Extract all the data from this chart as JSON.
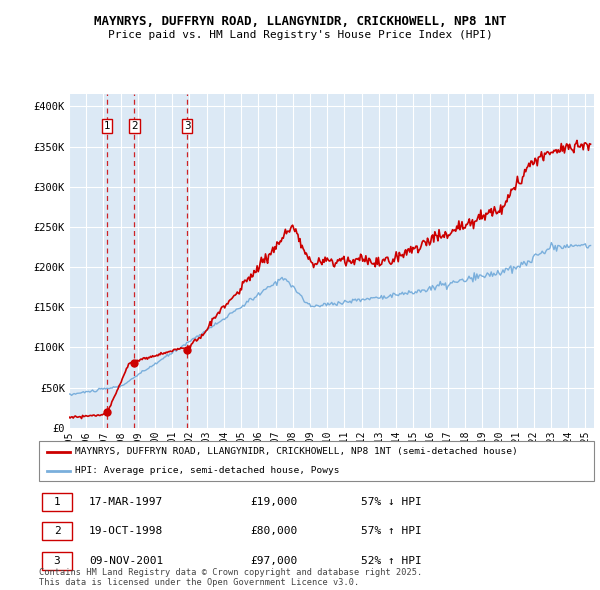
{
  "title": "MAYNRYS, DUFFRYN ROAD, LLANGYNIDR, CRICKHOWELL, NP8 1NT",
  "subtitle": "Price paid vs. HM Land Registry's House Price Index (HPI)",
  "legend_property": "MAYNRYS, DUFFRYN ROAD, LLANGYNIDR, CRICKHOWELL, NP8 1NT (semi-detached house)",
  "legend_hpi": "HPI: Average price, semi-detached house, Powys",
  "footer": "Contains HM Land Registry data © Crown copyright and database right 2025.\nThis data is licensed under the Open Government Licence v3.0.",
  "sale_events": [
    {
      "num": 1,
      "date": "17-MAR-1997",
      "price": 19000,
      "hpi_rel": "57% ↓ HPI",
      "year": 1997.21
    },
    {
      "num": 2,
      "date": "19-OCT-1998",
      "price": 80000,
      "hpi_rel": "57% ↑ HPI",
      "year": 1998.8
    },
    {
      "num": 3,
      "date": "09-NOV-2001",
      "price": 97000,
      "hpi_rel": "52% ↑ HPI",
      "year": 2001.86
    }
  ],
  "property_color": "#cc0000",
  "hpi_color": "#7aafdc",
  "vline_color": "#cc0000",
  "plot_bg": "#dce9f5",
  "ylim": [
    0,
    415000
  ],
  "xlim": [
    1995.0,
    2025.5
  ],
  "yticks": [
    0,
    50000,
    100000,
    150000,
    200000,
    250000,
    300000,
    350000,
    400000
  ],
  "ytick_labels": [
    "£0",
    "£50K",
    "£100K",
    "£150K",
    "£200K",
    "£250K",
    "£300K",
    "£350K",
    "£400K"
  ],
  "xticks": [
    1995,
    1996,
    1997,
    1998,
    1999,
    2000,
    2001,
    2002,
    2003,
    2004,
    2005,
    2006,
    2007,
    2008,
    2009,
    2010,
    2011,
    2012,
    2013,
    2014,
    2015,
    2016,
    2017,
    2018,
    2019,
    2020,
    2021,
    2022,
    2023,
    2024,
    2025
  ]
}
